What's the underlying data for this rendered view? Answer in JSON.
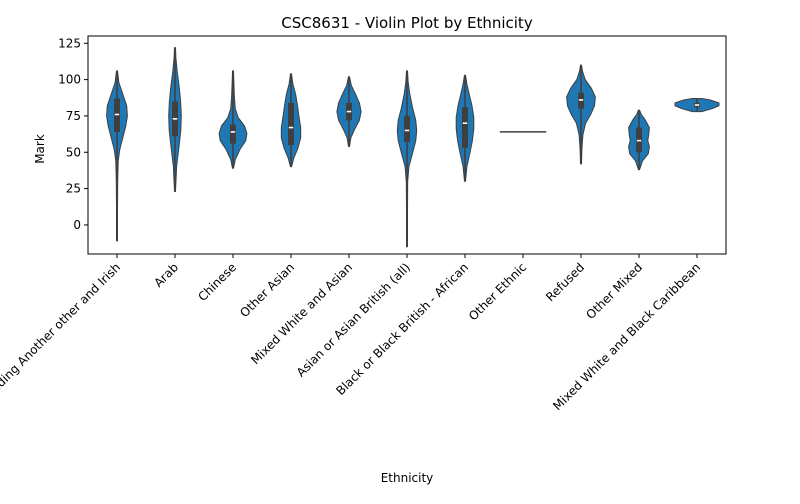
{
  "chart_data": {
    "type": "violin",
    "title": "CSC8631 - Violin Plot by Ethnicity",
    "xlabel": "Ethnicity",
    "ylabel": "Mark",
    "ylim": [
      -20,
      130
    ],
    "yticks": [
      0,
      25,
      50,
      75,
      100,
      125
    ],
    "grid": false,
    "color": "#1f77b4",
    "inner_box_color": "#3f3f3f",
    "categories": [
      {
        "label": "White including Another other and Irish",
        "min": -11,
        "max": 106,
        "q1": 64,
        "median": 76,
        "q3": 87,
        "density": [
          [
            -11,
            0.02
          ],
          [
            10,
            0.02
          ],
          [
            30,
            0.03
          ],
          [
            44,
            0.05
          ],
          [
            52,
            0.12
          ],
          [
            60,
            0.25
          ],
          [
            68,
            0.38
          ],
          [
            75,
            0.45
          ],
          [
            82,
            0.42
          ],
          [
            90,
            0.25
          ],
          [
            98,
            0.08
          ],
          [
            106,
            0.02
          ]
        ]
      },
      {
        "label": "Arab",
        "min": 23,
        "max": 122,
        "q1": 61,
        "median": 73,
        "q3": 85,
        "density": [
          [
            23,
            0.02
          ],
          [
            40,
            0.07
          ],
          [
            55,
            0.18
          ],
          [
            65,
            0.25
          ],
          [
            75,
            0.27
          ],
          [
            85,
            0.24
          ],
          [
            95,
            0.18
          ],
          [
            105,
            0.1
          ],
          [
            115,
            0.04
          ],
          [
            122,
            0.02
          ]
        ]
      },
      {
        "label": "Chinese",
        "min": 39,
        "max": 106,
        "q1": 56,
        "median": 64,
        "q3": 69,
        "density": [
          [
            39,
            0.02
          ],
          [
            45,
            0.1
          ],
          [
            52,
            0.3
          ],
          [
            58,
            0.55
          ],
          [
            63,
            0.6
          ],
          [
            68,
            0.5
          ],
          [
            74,
            0.22
          ],
          [
            80,
            0.1
          ],
          [
            88,
            0.06
          ],
          [
            97,
            0.04
          ],
          [
            106,
            0.02
          ]
        ]
      },
      {
        "label": "Other Asian",
        "min": 40,
        "max": 104,
        "q1": 55,
        "median": 67,
        "q3": 84,
        "density": [
          [
            40,
            0.02
          ],
          [
            46,
            0.12
          ],
          [
            53,
            0.3
          ],
          [
            60,
            0.42
          ],
          [
            67,
            0.42
          ],
          [
            74,
            0.35
          ],
          [
            82,
            0.28
          ],
          [
            90,
            0.2
          ],
          [
            97,
            0.08
          ],
          [
            104,
            0.02
          ]
        ]
      },
      {
        "label": "Mixed White and Asian",
        "min": 54,
        "max": 102,
        "q1": 72,
        "median": 78,
        "q3": 84,
        "density": [
          [
            54,
            0.02
          ],
          [
            60,
            0.08
          ],
          [
            66,
            0.25
          ],
          [
            72,
            0.45
          ],
          [
            78,
            0.52
          ],
          [
            84,
            0.45
          ],
          [
            90,
            0.28
          ],
          [
            96,
            0.1
          ],
          [
            102,
            0.02
          ]
        ]
      },
      {
        "label": "Asian or Asian British (all)",
        "min": -15,
        "max": 106,
        "q1": 57,
        "median": 65,
        "q3": 75,
        "density": [
          [
            -15,
            0.02
          ],
          [
            10,
            0.02
          ],
          [
            30,
            0.03
          ],
          [
            40,
            0.08
          ],
          [
            50,
            0.25
          ],
          [
            58,
            0.38
          ],
          [
            65,
            0.42
          ],
          [
            72,
            0.38
          ],
          [
            80,
            0.25
          ],
          [
            90,
            0.12
          ],
          [
            98,
            0.05
          ],
          [
            106,
            0.02
          ]
        ]
      },
      {
        "label": "Black or Black British - African",
        "min": 30,
        "max": 103,
        "q1": 53,
        "median": 70,
        "q3": 81,
        "density": [
          [
            30,
            0.02
          ],
          [
            40,
            0.08
          ],
          [
            50,
            0.22
          ],
          [
            58,
            0.32
          ],
          [
            66,
            0.38
          ],
          [
            74,
            0.38
          ],
          [
            82,
            0.3
          ],
          [
            90,
            0.18
          ],
          [
            97,
            0.08
          ],
          [
            103,
            0.02
          ]
        ]
      },
      {
        "label": "Other Ethnic",
        "min": 64,
        "max": 64,
        "q1": 64,
        "median": 64,
        "q3": 64,
        "single_value": true,
        "width_factor": 1.0
      },
      {
        "label": "Refused",
        "min": 42,
        "max": 110,
        "q1": 80,
        "median": 86,
        "q3": 91,
        "density": [
          [
            42,
            0.02
          ],
          [
            52,
            0.04
          ],
          [
            62,
            0.08
          ],
          [
            70,
            0.2
          ],
          [
            76,
            0.42
          ],
          [
            82,
            0.58
          ],
          [
            88,
            0.62
          ],
          [
            94,
            0.45
          ],
          [
            100,
            0.18
          ],
          [
            106,
            0.06
          ],
          [
            110,
            0.02
          ]
        ]
      },
      {
        "label": "Other Mixed",
        "min": 38,
        "max": 79,
        "q1": 50,
        "median": 58,
        "q3": 67,
        "density": [
          [
            38,
            0.02
          ],
          [
            44,
            0.15
          ],
          [
            49,
            0.4
          ],
          [
            54,
            0.45
          ],
          [
            58,
            0.38
          ],
          [
            62,
            0.42
          ],
          [
            67,
            0.45
          ],
          [
            72,
            0.28
          ],
          [
            76,
            0.1
          ],
          [
            79,
            0.02
          ]
        ]
      },
      {
        "label": "Mixed White and Black Caribbean",
        "min": 78,
        "max": 87,
        "q1": 81,
        "median": 82.5,
        "q3": 84,
        "density": [
          [
            78,
            0.2
          ],
          [
            80,
            0.65
          ],
          [
            82,
            0.95
          ],
          [
            84,
            0.95
          ],
          [
            86,
            0.55
          ],
          [
            87,
            0.2
          ]
        ]
      }
    ]
  }
}
